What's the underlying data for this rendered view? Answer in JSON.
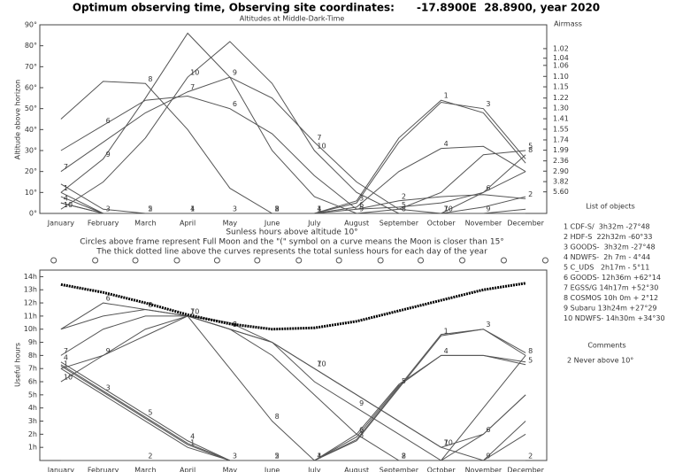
{
  "chart_data": [
    {
      "type": "line",
      "title": "Optimum observing time, Observing site coordinates:      -17.8900E  28.8900, year 2020",
      "subtitle": "Altitudes at Middle-Dark-Time",
      "y_label": "Altitude above horizon",
      "y2_label": "Airmass",
      "y2scale": "airmass",
      "legend_title": "List of objects",
      "color": "#555555",
      "categories": [
        "January",
        "February",
        "March",
        "April",
        "May",
        "June",
        "July",
        "August",
        "September",
        "October",
        "November",
        "December"
      ],
      "ylim": [
        0,
        90
      ],
      "yticks": [
        {
          "value": 0,
          "label": "0°"
        },
        {
          "value": 10,
          "label": "10°"
        },
        {
          "value": 20,
          "label": "20°"
        },
        {
          "value": 30,
          "label": "30°"
        },
        {
          "value": 40,
          "label": "40°"
        },
        {
          "value": 50,
          "label": "50°"
        },
        {
          "value": 60,
          "label": "60°"
        },
        {
          "value": 70,
          "label": "70°"
        },
        {
          "value": 80,
          "label": "80°"
        },
        {
          "value": 90,
          "label": "90°"
        }
      ],
      "y2ticks": [
        1.02,
        1.04,
        1.06,
        {
          "value": 1.1,
          "label": "1.10"
        },
        1.15,
        1.22,
        {
          "value": 1.3,
          "label": "1.30"
        },
        1.41,
        1.55,
        1.74,
        1.99,
        2.36,
        {
          "value": 2.9,
          "label": "2.90"
        },
        3.82,
        {
          "value": 5.6,
          "label": "5.60"
        }
      ],
      "series": [
        {
          "name": "1 CDF-S/  3h32m -27°48",
          "marker": "1",
          "values": [
            10,
            0,
            0,
            0,
            0,
            0,
            0,
            6,
            36,
            54,
            48,
            24
          ]
        },
        {
          "name": "2 HDF-S  22h32m -60°33",
          "marker": "2",
          "values": [
            5,
            0,
            0,
            0,
            0,
            0,
            0,
            2,
            6,
            8,
            9,
            7
          ]
        },
        {
          "name": "3 GOODS-  3h32m -27°48",
          "marker": "3",
          "values": [
            8,
            0,
            0,
            0,
            0,
            0,
            0,
            5,
            34,
            53,
            50,
            26
          ]
        },
        {
          "name": "4 NDWFS-  2h 7m - 4°44",
          "marker": "4",
          "values": [
            5,
            0,
            0,
            0,
            0,
            0,
            0,
            3,
            20,
            31,
            32,
            20
          ]
        },
        {
          "name": "5 C_UDS   2h17m - 5°11",
          "marker": "5",
          "values": [
            14,
            2,
            0,
            0,
            0,
            0,
            0,
            0,
            2,
            10,
            28,
            30
          ]
        },
        {
          "name": "6 GOODS- 12h36m +62°14",
          "marker": "6",
          "values": [
            30,
            42,
            54,
            56,
            50,
            38,
            18,
            2,
            3,
            5,
            10,
            20
          ]
        },
        {
          "name": "7 EGSS/G 14h17m +52°30",
          "marker": "7",
          "values": [
            20,
            34,
            48,
            58,
            65,
            55,
            34,
            15,
            2,
            0,
            3,
            8
          ]
        },
        {
          "name": "8 COSMOS 10h 0m + 2°12",
          "marker": "8",
          "values": [
            45,
            63,
            62,
            40,
            12,
            0,
            0,
            0,
            0,
            0,
            10,
            28
          ]
        },
        {
          "name": "9 Subaru 13h24m +27°29",
          "marker": "9",
          "values": [
            10,
            26,
            55,
            86,
            65,
            30,
            8,
            0,
            0,
            0,
            0,
            2
          ]
        },
        {
          "name": "10 NDWFS- 14h30m +34°30",
          "marker": "10",
          "values": [
            2,
            15,
            36,
            65,
            82,
            62,
            30,
            10,
            0,
            0,
            0,
            0
          ]
        }
      ]
    },
    {
      "type": "line",
      "title": "Sunless hours above altitude 10°",
      "notes": [
        "Circles above frame represent Full Moon and the \"(\" symbol on a curve means the Moon is closer than 15°",
        "The thick dotted line above the curves represents the total sunless hours for each day of the year"
      ],
      "y_label": "Useful hours",
      "comments_title": "Comments",
      "comments": [
        "2 Never above 10°"
      ],
      "color": "#555555",
      "sunless_color": "#000000",
      "categories": [
        "January",
        "February",
        "March",
        "April",
        "May",
        "June",
        "July",
        "August",
        "September",
        "October",
        "November",
        "December"
      ],
      "ylim": [
        0,
        14.5
      ],
      "yticks": [
        {
          "value": 1,
          "label": "1h"
        },
        {
          "value": 2,
          "label": "2h"
        },
        {
          "value": 3,
          "label": "3h"
        },
        {
          "value": 4,
          "label": "4h"
        },
        {
          "value": 5,
          "label": "5h"
        },
        {
          "value": 6,
          "label": "6h"
        },
        {
          "value": 7,
          "label": "7h"
        },
        {
          "value": 8,
          "label": "8h"
        },
        {
          "value": 9,
          "label": "9h"
        },
        {
          "value": 10,
          "label": "10h"
        },
        {
          "value": 11,
          "label": "11h"
        },
        {
          "value": 12,
          "label": "12h"
        },
        {
          "value": 13,
          "label": "13h"
        },
        {
          "value": 14,
          "label": "14h"
        }
      ],
      "xlim": [
        0,
        366
      ],
      "full_moon_days": [
        10,
        40,
        69,
        99,
        128,
        157,
        187,
        216,
        246,
        275,
        305,
        335,
        365
      ],
      "sunless_hours": [
        13.4,
        12.8,
        12.0,
        11.1,
        10.4,
        10.0,
        10.1,
        10.6,
        11.4,
        12.2,
        13.0,
        13.5
      ],
      "series": [
        {
          "marker": "1",
          "values": [
            7.0,
            5.0,
            3.0,
            1.0,
            0,
            0,
            0,
            1.5,
            5.5,
            9.5,
            10.0,
            8.0
          ]
        },
        {
          "marker": "2",
          "values": [
            0,
            0,
            0,
            0,
            0,
            0,
            0,
            0,
            0,
            0,
            0,
            0
          ]
        },
        {
          "marker": "3",
          "values": [
            7.2,
            5.2,
            3.2,
            1.2,
            0,
            0,
            0,
            1.6,
            5.6,
            9.6,
            10.0,
            8.2
          ]
        },
        {
          "marker": "4",
          "values": [
            7.5,
            5.5,
            3.5,
            1.5,
            0,
            0,
            0,
            2,
            5.8,
            8,
            8,
            7.5
          ]
        },
        {
          "marker": "5",
          "values": [
            7.3,
            5.3,
            3.3,
            1.3,
            0,
            0,
            0,
            1.8,
            5.7,
            8,
            8,
            7.3
          ]
        },
        {
          "marker": "6",
          "values": [
            10,
            12,
            11.5,
            11,
            10,
            8,
            5,
            2,
            0,
            0,
            2,
            5
          ]
        },
        {
          "marker": "7",
          "values": [
            8,
            10,
            11,
            11,
            10.5,
            9,
            7,
            5,
            3,
            1,
            2,
            5
          ]
        },
        {
          "marker": "8",
          "values": [
            10,
            11,
            11.5,
            11,
            7,
            3,
            0,
            0,
            0,
            0,
            4,
            8
          ]
        },
        {
          "marker": "9",
          "values": [
            7,
            8,
            10,
            11,
            10,
            9,
            6,
            4,
            2,
            0,
            0,
            3
          ]
        },
        {
          "marker": "10",
          "values": [
            6,
            8,
            9.5,
            11,
            10,
            9,
            7,
            5,
            3,
            1,
            0,
            2
          ]
        }
      ]
    }
  ]
}
